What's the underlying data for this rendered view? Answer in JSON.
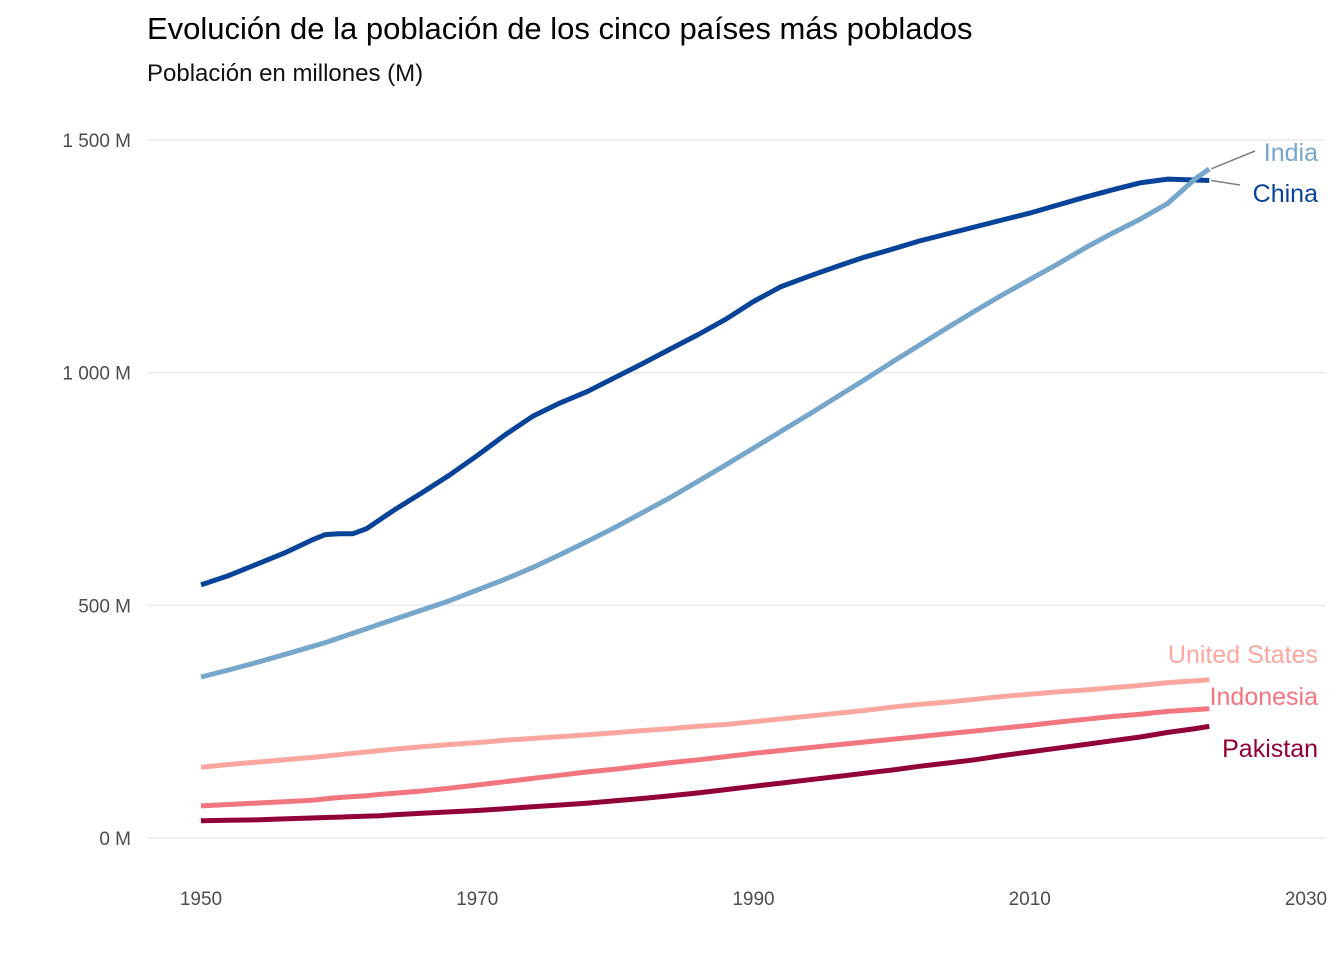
{
  "chart_data": {
    "type": "line",
    "title": "Evolución de la población de los cinco países más poblados",
    "subtitle": "Población en millones (M)",
    "xlabel": "",
    "ylabel": "",
    "xlim": [
      1946,
      2030
    ],
    "ylim": [
      -70,
      1580
    ],
    "grid": true,
    "legend": "direct-labels-right",
    "x_ticks": [
      1950,
      1970,
      1990,
      2010,
      2030
    ],
    "x_tick_labels": [
      "1950",
      "1970",
      "1990",
      "2010",
      "2030"
    ],
    "y_ticks": [
      0,
      500,
      1000,
      1500
    ],
    "y_tick_labels": [
      "0 M",
      "500 M",
      "1 000 M",
      "1 500 M"
    ],
    "x": [
      1950,
      1952,
      1954,
      1956,
      1958,
      1959,
      1960,
      1961,
      1962,
      1963,
      1964,
      1966,
      1968,
      1970,
      1972,
      1974,
      1976,
      1978,
      1980,
      1982,
      1984,
      1986,
      1988,
      1990,
      1992,
      1994,
      1996,
      1998,
      2000,
      2002,
      2004,
      2006,
      2008,
      2010,
      2012,
      2014,
      2016,
      2018,
      2020,
      2022,
      2023
    ],
    "series": [
      {
        "name": "China",
        "label": "China",
        "color": "#08439a",
        "values": [
          544,
          564,
          588,
          612,
          640,
          652,
          654,
          654,
          665,
          685,
          705,
          742,
          780,
          822,
          866,
          906,
          935,
          960,
          990,
          1020,
          1051,
          1082,
          1115,
          1153,
          1185,
          1207,
          1228,
          1248,
          1265,
          1283,
          1298,
          1313,
          1328,
          1343,
          1360,
          1377,
          1393,
          1408,
          1416,
          1414,
          1413
        ]
      },
      {
        "name": "India",
        "label": "India",
        "color": "#77a6cb",
        "values": [
          346,
          361,
          377,
          394,
          411,
          420,
          430,
          440,
          450,
          460,
          470,
          490,
          510,
          533,
          556,
          581,
          609,
          638,
          668,
          700,
          732,
          767,
          802,
          838,
          874,
          910,
          947,
          984,
          1022,
          1059,
          1096,
          1132,
          1167,
          1200,
          1233,
          1268,
          1300,
          1330,
          1364,
          1417,
          1438
        ]
      },
      {
        "name": "United States",
        "label": "United States",
        "color": "#fba7a0",
        "values": [
          152,
          158,
          163,
          168,
          173,
          176,
          179,
          182,
          185,
          188,
          191,
          196,
          201,
          205,
          210,
          214,
          218,
          222,
          226,
          231,
          235,
          240,
          244,
          250,
          256,
          262,
          268,
          274,
          281,
          287,
          292,
          298,
          304,
          309,
          314,
          318,
          323,
          328,
          334,
          338,
          340
        ]
      },
      {
        "name": "Indonesia",
        "label": "Indonesia",
        "color": "#f27580",
        "values": [
          69,
          72,
          75,
          78,
          81,
          84,
          87,
          89,
          91,
          94,
          96,
          101,
          107,
          114,
          121,
          128,
          135,
          142,
          148,
          155,
          162,
          168,
          175,
          182,
          188,
          194,
          200,
          206,
          212,
          218,
          224,
          230,
          236,
          242,
          249,
          255,
          261,
          266,
          272,
          276,
          278
        ]
      },
      {
        "name": "Pakistan",
        "label": "Pakistan",
        "color": "#910038",
        "values": [
          37,
          38,
          39,
          41,
          43,
          44,
          45,
          46,
          47,
          48,
          50,
          53,
          56,
          59,
          63,
          67,
          71,
          75,
          80,
          85,
          91,
          97,
          104,
          111,
          118,
          125,
          132,
          139,
          146,
          154,
          161,
          168,
          177,
          185,
          193,
          201,
          209,
          217,
          227,
          235,
          240
        ]
      }
    ],
    "label_connectors": [
      "India",
      "China"
    ]
  }
}
